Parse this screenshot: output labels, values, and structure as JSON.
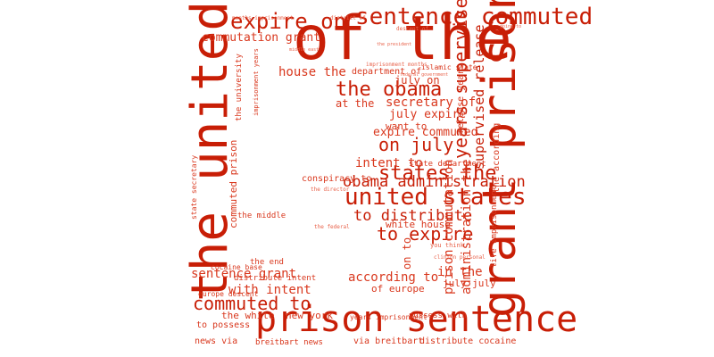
{
  "image": {
    "kind": "word cloud"
  },
  "palette": {
    "primary": "#c81e06",
    "mid": "#d9381e",
    "light": "#e8624a",
    "pale": "#f09a8a"
  },
  "words": [
    "of the",
    "the united",
    "grant prison",
    "prison sentence",
    "sentence commuted",
    "united states",
    "expire on",
    "the obama",
    "states the",
    "obama administration",
    "years supervised",
    "to expire",
    "on july",
    "commutation grant",
    "to distribute",
    "commuted to",
    "supervised release",
    "house the",
    "secretary of",
    "july expire",
    "expire commuted",
    "administration the",
    "prison commutation",
    "intent to",
    "with intent",
    "according to",
    "in the",
    "sentence grant",
    "white house",
    "july on",
    "want to",
    "department of",
    "commuted prison",
    "the according",
    "at the",
    "the white",
    "new york",
    "of europe",
    "to possess",
    "distribute cocaine",
    "via breitbart",
    "breitbart news",
    "possess with",
    "years imprisonment",
    "distribute intent",
    "the end",
    "the middle",
    "conspiracy to",
    "release years",
    "life imprisonment",
    "state department",
    "the university",
    "news via",
    "on to",
    "july july",
    "islamic state",
    "imprisonment years",
    "state secretary",
    "europe descent",
    "cocaine base",
    "the director",
    "the federal",
    "you think",
    "clinton personal",
    "imprisonment months",
    "months imprisonment",
    "district of",
    "middle east",
    "the president",
    "descent of",
    "going to",
    "federal government"
  ]
}
